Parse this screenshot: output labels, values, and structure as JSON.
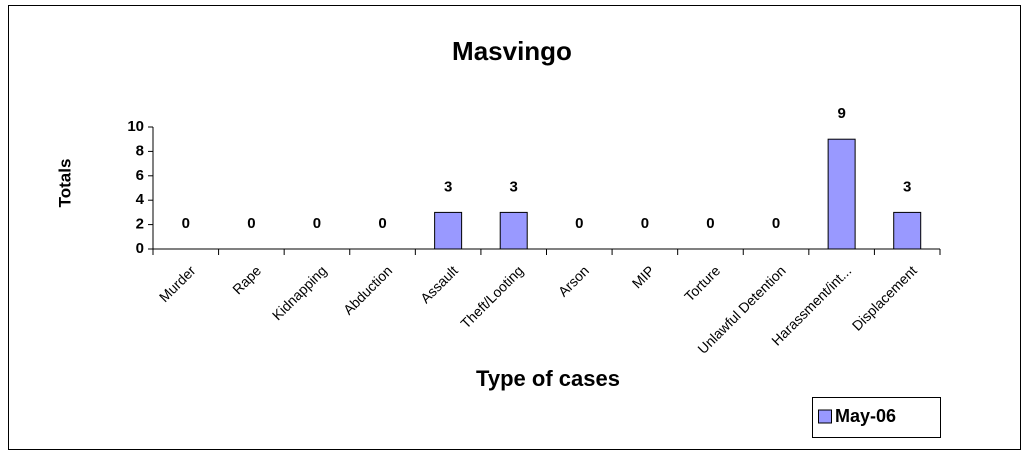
{
  "chart_data": {
    "type": "bar",
    "title": "Masvingo",
    "xlabel": "Type of cases",
    "ylabel": "Totals",
    "categories": [
      "Murder",
      "Rape",
      "Kidnapping",
      "Abduction",
      "Assault",
      "Theft/Looting",
      "Arson",
      "MIP",
      "Torture",
      "Unlawful Detention",
      "Harassment/int...",
      "Displacement"
    ],
    "series": [
      {
        "name": "May-06",
        "color": "#9999ff",
        "values": [
          0,
          0,
          0,
          0,
          3,
          3,
          0,
          0,
          0,
          0,
          9,
          3
        ]
      }
    ],
    "ylim": [
      0,
      10
    ],
    "yticks": [
      0,
      2,
      4,
      6,
      8,
      10
    ],
    "grid": false,
    "legend": "bottom-right",
    "data_labels": true
  }
}
